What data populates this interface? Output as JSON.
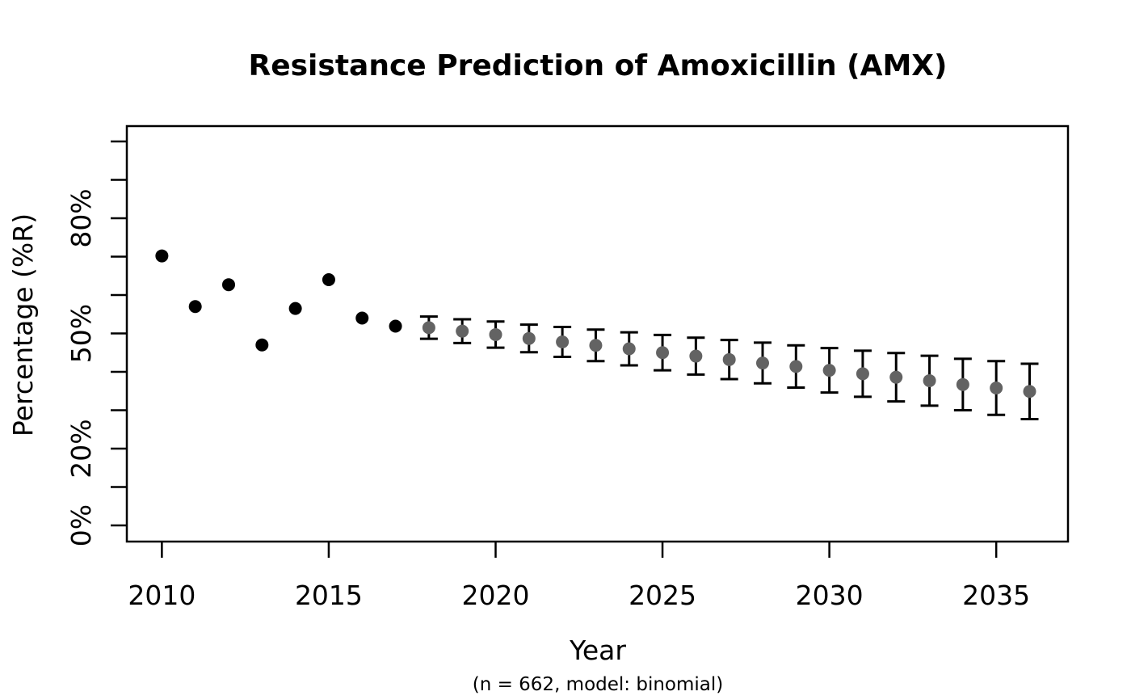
{
  "chart_data": {
    "type": "scatter",
    "title": "Resistance Prediction of Amoxicillin (AMX)",
    "xlabel": "Year",
    "ylabel": "Percentage (%R)",
    "caption": "(n = 662, model: binomial)",
    "grid": false,
    "legend": "none",
    "xlim": [
      2008.95,
      2037.15
    ],
    "ylim": [
      -4.2,
      104
    ],
    "x_axis": {
      "ticks": [
        {
          "value": 2010,
          "label": "2010"
        },
        {
          "value": 2015,
          "label": "2015"
        },
        {
          "value": 2020,
          "label": "2020"
        },
        {
          "value": 2025,
          "label": "2025"
        },
        {
          "value": 2030,
          "label": "2030"
        },
        {
          "value": 2035,
          "label": "2035"
        }
      ]
    },
    "y_axis": {
      "ticks": [
        0,
        10,
        20,
        30,
        40,
        50,
        60,
        70,
        80,
        90,
        100
      ],
      "labeled_ticks": [
        {
          "value": 0,
          "label": "0%"
        },
        {
          "value": 20,
          "label": "20%"
        },
        {
          "value": 50,
          "label": "50%"
        },
        {
          "value": 80,
          "label": "80%"
        }
      ]
    },
    "colors": {
      "axis": "#000000",
      "observed": "#000000",
      "predicted": "#636363",
      "error_bar": "#000000"
    },
    "series": [
      {
        "name": "observed",
        "marker": "circle",
        "color": "#000000",
        "x": [
          2010,
          2011,
          2012,
          2013,
          2014,
          2015,
          2016,
          2017
        ],
        "y": [
          70.2,
          57.0,
          62.7,
          47.0,
          56.5,
          64.0,
          54.0,
          51.9
        ]
      },
      {
        "name": "predicted",
        "marker": "circle",
        "color": "#636363",
        "error_bar_color": "#000000",
        "x": [
          2018,
          2019,
          2020,
          2021,
          2022,
          2023,
          2024,
          2025,
          2026,
          2027,
          2028,
          2029,
          2030,
          2031,
          2032,
          2033,
          2034,
          2035,
          2036
        ],
        "y": [
          51.5,
          50.6,
          49.7,
          48.7,
          47.8,
          46.9,
          46.0,
          45.0,
          44.1,
          43.2,
          42.3,
          41.4,
          40.4,
          39.5,
          38.6,
          37.7,
          36.7,
          35.8,
          34.9
        ],
        "ci_low": [
          48.6,
          47.5,
          46.3,
          45.1,
          43.9,
          42.8,
          41.7,
          40.4,
          39.3,
          38.1,
          37.0,
          35.9,
          34.6,
          33.5,
          32.3,
          31.2,
          30.0,
          28.8,
          27.7
        ],
        "ci_high": [
          54.4,
          53.7,
          53.1,
          52.3,
          51.7,
          51.0,
          50.3,
          49.6,
          48.9,
          48.3,
          47.6,
          46.9,
          46.2,
          45.5,
          44.9,
          44.2,
          43.4,
          42.8,
          42.1
        ]
      }
    ]
  }
}
